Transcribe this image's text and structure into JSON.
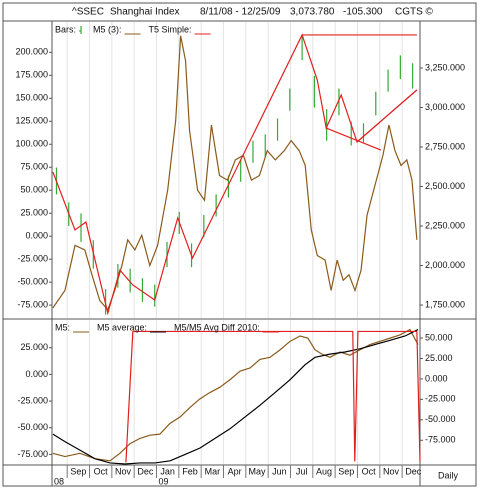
{
  "header": {
    "symbol": "^SSEC",
    "name": "Shanghai Index",
    "range": "8/11/08 - 12/25/09",
    "last": "3,073.780",
    "change": "-105.300",
    "source": "CGTS ©",
    "period": "Daily"
  },
  "x_axis": {
    "xlim": [
      0,
      16.48
    ],
    "xticks": [
      {
        "value": 0.68,
        "label": "Sep"
      },
      {
        "value": 1.68,
        "label": "Oct"
      },
      {
        "value": 2.68,
        "label": "Nov"
      },
      {
        "value": 3.68,
        "label": "Dec"
      },
      {
        "value": 4.68,
        "label": "Jan"
      },
      {
        "value": 5.68,
        "label": "Feb"
      },
      {
        "value": 6.68,
        "label": "Mar"
      },
      {
        "value": 7.68,
        "label": "Apr"
      },
      {
        "value": 8.68,
        "label": "May"
      },
      {
        "value": 9.68,
        "label": "Jun"
      },
      {
        "value": 10.68,
        "label": "Jul"
      },
      {
        "value": 11.68,
        "label": "Aug"
      },
      {
        "value": 12.68,
        "label": "Sep"
      },
      {
        "value": 13.68,
        "label": "Oct"
      },
      {
        "value": 14.68,
        "label": "Nov"
      },
      {
        "value": 15.68,
        "label": "Dec"
      }
    ],
    "years": [
      {
        "value": 0,
        "label": "08"
      },
      {
        "value": 4.68,
        "label": "09"
      }
    ],
    "grid": true
  },
  "chart_data": [
    {
      "type": "line",
      "ylim": [
        -89,
        233
      ],
      "yticks": [
        {
          "value": -75,
          "label": "-75.000"
        },
        {
          "value": -50,
          "label": "-50.000"
        },
        {
          "value": -25,
          "label": "-25.000"
        },
        {
          "value": 0,
          "label": "0.000"
        },
        {
          "value": 25,
          "label": "25.000"
        },
        {
          "value": 50,
          "label": "50.000"
        },
        {
          "value": 75,
          "label": "75.000"
        },
        {
          "value": 100,
          "label": "100.000"
        },
        {
          "value": 125,
          "label": "125.000"
        },
        {
          "value": 150,
          "label": "150.000"
        },
        {
          "value": 175,
          "label": "175.000"
        },
        {
          "value": 200,
          "label": "200.000"
        }
      ],
      "y2lim": [
        1668,
        3541
      ],
      "y2ticks": [
        {
          "value": 1750,
          "label": "1,750.000"
        },
        {
          "value": 2000,
          "label": "2,000.000"
        },
        {
          "value": 2250,
          "label": "2,250.000"
        },
        {
          "value": 2500,
          "label": "2,500.000"
        },
        {
          "value": 2750,
          "label": "2,750.000"
        },
        {
          "value": 3000,
          "label": "3,000.000"
        },
        {
          "value": 3250,
          "label": "3,250.000"
        }
      ],
      "series": [
        {
          "name": "Bars:",
          "type": "bar",
          "color": "#33aa33",
          "axis": "y2",
          "x": [
            0.2,
            0.75,
            1.3,
            1.85,
            2.4,
            2.95,
            3.5,
            4.05,
            4.6,
            5.15,
            5.7,
            6.25,
            6.8,
            7.35,
            7.9,
            8.45,
            9.0,
            9.55,
            10.1,
            10.65,
            11.2,
            11.75,
            12.3,
            12.85,
            13.4,
            13.95,
            14.5,
            15.05,
            15.6,
            16.15
          ],
          "high": [
            2620,
            2400,
            2330,
            2160,
            1850,
            2010,
            1980,
            1920,
            1880,
            2150,
            2340,
            2140,
            2320,
            2450,
            2570,
            2670,
            2790,
            2830,
            2930,
            3120,
            3460,
            3200,
            2990,
            3120,
            2910,
            2900,
            3100,
            3240,
            3330,
            3280
          ],
          "low": [
            2450,
            2250,
            2150,
            1980,
            1690,
            1860,
            1830,
            1770,
            1740,
            1990,
            2200,
            1990,
            2180,
            2310,
            2430,
            2530,
            2650,
            2690,
            2790,
            2980,
            3300,
            3000,
            2790,
            2950,
            2760,
            2780,
            2950,
            3100,
            3180,
            3120
          ]
        },
        {
          "name": "M5 (3):",
          "type": "line",
          "color": "#8b5a1a",
          "x": [
            0.04,
            0.58,
            1.03,
            1.47,
            1.79,
            2.14,
            2.5,
            2.81,
            3.13,
            3.39,
            3.71,
            4.02,
            4.38,
            4.73,
            5.18,
            5.54,
            5.76,
            5.98,
            6.16,
            6.52,
            6.83,
            7.14,
            7.5,
            7.86,
            8.21,
            8.57,
            8.93,
            9.29,
            9.64,
            10.0,
            10.4,
            10.71,
            11.07,
            11.34,
            11.61,
            11.88,
            12.23,
            12.5,
            12.77,
            13.04,
            13.3,
            13.57,
            13.84,
            14.11,
            14.46,
            14.82,
            15.09,
            15.36,
            15.63,
            15.89,
            16.12,
            16.34
          ],
          "values": [
            -78,
            -59,
            -10,
            -15,
            -42,
            -70,
            -80,
            -59,
            -32,
            -4,
            -15,
            1,
            -32,
            -10,
            50,
            126,
            218,
            191,
            115,
            50,
            39,
            121,
            66,
            61,
            83,
            88,
            61,
            66,
            93,
            83,
            93,
            104,
            93,
            77,
            7,
            -21,
            -26,
            -59,
            -26,
            -48,
            -42,
            -59,
            -37,
            23,
            55,
            88,
            121,
            93,
            77,
            83,
            61,
            -4
          ]
        },
        {
          "name": "T5 Simple:",
          "type": "line",
          "color": "#e02020",
          "axis": "y2",
          "x": [
            0.04,
            1.03,
            1.52,
            2.5,
            3.04,
            3.62,
            4.6,
            5.63,
            6.29,
            11.2,
            11.88,
            12.28,
            12.95,
            13.66,
            16.34
          ],
          "values": [
            2592,
            2225,
            2275,
            1699,
            1971,
            1877,
            1782,
            2301,
            2047,
            3459,
            3174,
            2870,
            3079,
            2782,
            3111
          ]
        }
      ],
      "trendlines": [
        {
          "x": [
            11.2,
            16.34
          ],
          "values": [
            3459,
            3459
          ]
        },
        {
          "x": [
            12.28,
            14.73
          ],
          "values": [
            2870,
            2731
          ]
        },
        {
          "x": [
            13.66,
            16.34
          ],
          "values": [
            2782,
            3111
          ]
        }
      ]
    },
    {
      "type": "line",
      "ylim": [
        -84,
        51
      ],
      "yticks": [
        {
          "value": -75,
          "label": "-75.000"
        },
        {
          "value": -50,
          "label": "-50.000"
        },
        {
          "value": -25,
          "label": "-25.000"
        },
        {
          "value": 0,
          "label": "0.000"
        },
        {
          "value": 25,
          "label": "25.000"
        }
      ],
      "y2lim": [
        -104,
        72
      ],
      "y2ticks": [
        {
          "value": -75,
          "label": "-75.000"
        },
        {
          "value": -50,
          "label": "-50.000"
        },
        {
          "value": -25,
          "label": "-25.000"
        },
        {
          "value": 0,
          "label": "0.000"
        },
        {
          "value": 25,
          "label": "25.000"
        },
        {
          "value": 50,
          "label": "50.000"
        }
      ],
      "series": [
        {
          "name": "M5:",
          "type": "line",
          "color": "#8b5a1a",
          "x": [
            0.04,
            0.58,
            1.25,
            1.92,
            2.6,
            3.04,
            3.49,
            3.94,
            4.39,
            4.83,
            5.28,
            5.73,
            6.18,
            6.62,
            7.07,
            7.52,
            7.97,
            8.42,
            8.87,
            9.31,
            9.76,
            10.21,
            10.66,
            11.11,
            11.46,
            11.78,
            12.09,
            12.45,
            12.9,
            13.34,
            13.79,
            14.24,
            14.69,
            15.14,
            15.58,
            16.03,
            16.39
          ],
          "values": [
            -74,
            -77,
            -74,
            -79,
            -81,
            -74,
            -65,
            -60,
            -57,
            -56,
            -46,
            -40,
            -31,
            -23,
            -17,
            -12,
            -5,
            3,
            6,
            14,
            16,
            23,
            31,
            36,
            34,
            23,
            19,
            16,
            21,
            18,
            23,
            28,
            31,
            34,
            37,
            42,
            28
          ]
        },
        {
          "name": "M5 average:",
          "type": "line",
          "color": "#000000",
          "x": [
            0.04,
            0.58,
            1.25,
            1.92,
            2.6,
            3.27,
            3.94,
            4.62,
            5.29,
            5.96,
            6.63,
            7.3,
            7.97,
            8.64,
            9.31,
            9.99,
            10.66,
            11.33,
            11.78,
            12.45,
            13.12,
            13.79,
            14.46,
            15.14,
            15.81,
            16.39
          ],
          "values": [
            -56,
            -63,
            -71,
            -79,
            -83,
            -84,
            -83,
            -83,
            -81,
            -75,
            -69,
            -60,
            -51,
            -40,
            -29,
            -17,
            -5,
            9,
            16,
            19,
            21,
            24,
            28,
            32,
            36,
            42
          ]
        },
        {
          "name": "M5/M5 Avg Diff 2010:",
          "type": "line",
          "color": "#e02020",
          "axis": "y2",
          "x": [
            3.31,
            3.62,
            13.47,
            13.56,
            13.7,
            16.34,
            16.48
          ],
          "values": [
            -102,
            58,
            58,
            -101,
            58,
            58,
            -101
          ]
        }
      ]
    }
  ]
}
